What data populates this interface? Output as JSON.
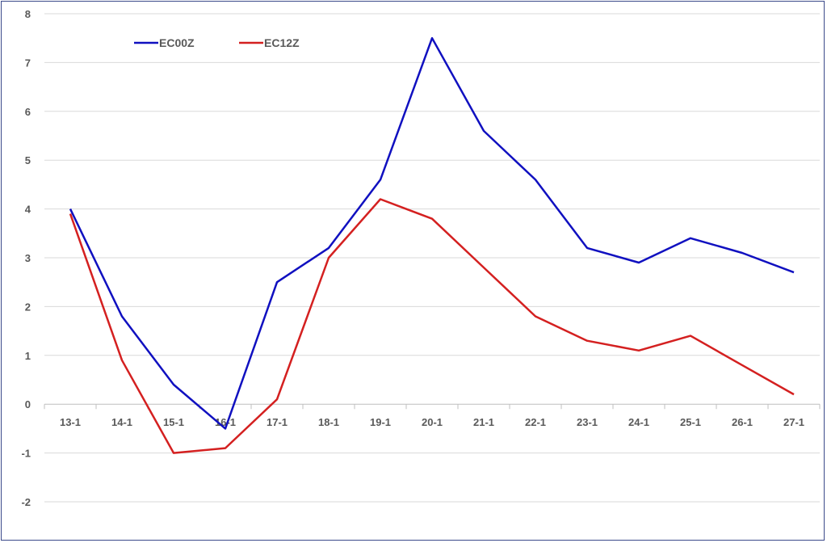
{
  "chart_data": {
    "type": "line",
    "title": "",
    "xlabel": "",
    "ylabel": "",
    "categories": [
      "13-1",
      "14-1",
      "15-1",
      "16-1",
      "17-1",
      "18-1",
      "19-1",
      "20-1",
      "21-1",
      "22-1",
      "23-1",
      "24-1",
      "25-1",
      "26-1",
      "27-1"
    ],
    "ylim": [
      -2,
      8
    ],
    "yticks": [
      -2,
      -1,
      0,
      1,
      2,
      3,
      4,
      5,
      6,
      7,
      8
    ],
    "grid": true,
    "legend_position": "top-left",
    "series": [
      {
        "name": "EC00Z",
        "color": "#1010c0",
        "values": [
          4.0,
          1.8,
          0.4,
          -0.5,
          2.5,
          3.2,
          4.6,
          7.5,
          5.6,
          4.6,
          3.2,
          2.9,
          3.4,
          3.1,
          2.7
        ]
      },
      {
        "name": "EC12Z",
        "color": "#d42020",
        "values": [
          3.9,
          0.9,
          -1.0,
          -0.9,
          0.1,
          3.0,
          4.2,
          3.8,
          2.8,
          1.8,
          1.3,
          1.1,
          1.4,
          0.8,
          0.2
        ]
      }
    ]
  }
}
